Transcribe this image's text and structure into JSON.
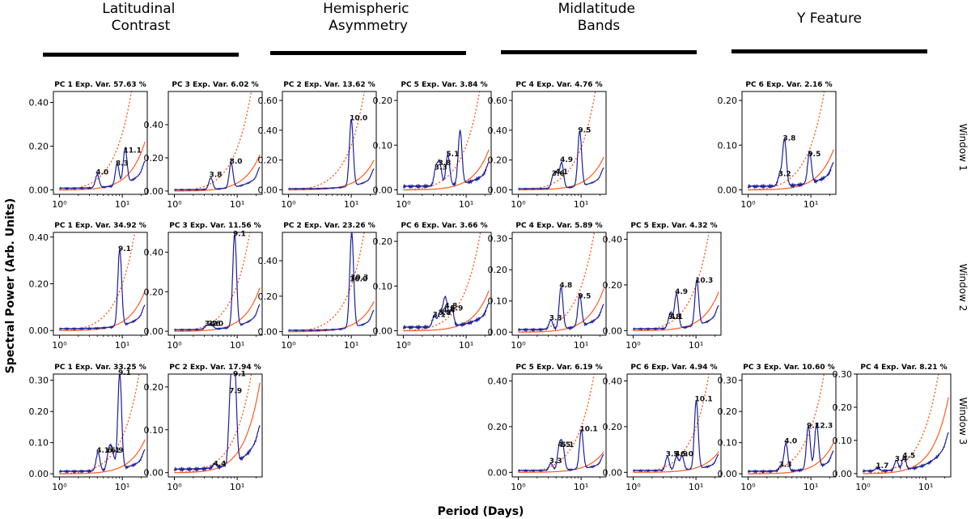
{
  "figure": {
    "ylabel": "Spectral Power (Arb. Units)",
    "xlabel": "Period (Days)",
    "columns": [
      "Latitudinal Contrast",
      "Hemispheric Asymmetry",
      "Midlatitude Bands",
      "Y Feature"
    ],
    "rows": [
      "Window 1",
      "Window 2",
      "Window 3"
    ]
  },
  "chart_data": [
    {
      "type": "line",
      "row": 0,
      "col": 0,
      "title": "PC 1 Exp. Var. 57.63 %",
      "xscale": "log",
      "xlim": [
        0.8,
        25
      ],
      "ylim": [
        -0.02,
        0.45
      ],
      "yticks": [
        0.0,
        0.2,
        0.4
      ],
      "ytick_labels": [
        "0.00",
        "0.20",
        "0.40"
      ],
      "xtick_labels": [
        "10⁰",
        "10¹"
      ],
      "peaks": [
        {
          "x": 4.0,
          "y": 0.06,
          "label": "4.0"
        },
        {
          "x": 8.3,
          "y": 0.1,
          "label": "8.3"
        },
        {
          "x": 11.1,
          "y": 0.16,
          "label": "11.1"
        }
      ],
      "red_slope": 0.22,
      "dot_slope": 0.55
    },
    {
      "type": "line",
      "row": 0,
      "col": 1,
      "title": "PC 3 Exp. Var. 6.02 %",
      "xscale": "log",
      "xlim": [
        0.8,
        25
      ],
      "ylim": [
        -0.02,
        0.6
      ],
      "yticks": [
        0.0,
        0.2,
        0.4
      ],
      "ytick_labels": [
        "0.00",
        "0.20",
        "0.40"
      ],
      "xtick_labels": [
        "10⁰",
        "10¹"
      ],
      "peaks": [
        {
          "x": 3.8,
          "y": 0.07,
          "label": "3.8"
        },
        {
          "x": 8.0,
          "y": 0.15,
          "label": "8.0"
        }
      ],
      "red_slope": 0.22,
      "dot_slope": 0.55
    },
    {
      "type": "line",
      "row": 0,
      "col": 2,
      "title": "PC 2 Exp. Var. 13.62 %",
      "xscale": "log",
      "xlim": [
        0.8,
        25
      ],
      "ylim": [
        -0.03,
        0.66
      ],
      "yticks": [
        0.0,
        0.2,
        0.4,
        0.6
      ],
      "ytick_labels": [
        "0.00",
        "0.20",
        "0.40",
        "0.60"
      ],
      "xtick_labels": [
        "10⁰",
        "10¹"
      ],
      "peaks": [
        {
          "x": 10.0,
          "y": 0.45,
          "label": "10.0"
        }
      ],
      "red_slope": 0.2,
      "dot_slope": 0.64
    },
    {
      "type": "line",
      "row": 0,
      "col": 3,
      "title": "PC 5 Exp. Var. 3.84 %",
      "xscale": "log",
      "xlim": [
        0.8,
        25
      ],
      "ylim": [
        -0.01,
        0.22
      ],
      "yticks": [
        0.0,
        0.1,
        0.2
      ],
      "ytick_labels": [
        "0.00",
        "0.10",
        "0.20"
      ],
      "xtick_labels": [
        "10⁰",
        "10¹"
      ],
      "peaks": [
        {
          "x": 3.3,
          "y": 0.04,
          "label": "3.3"
        },
        {
          "x": 3.8,
          "y": 0.05,
          "label": "3.8"
        },
        {
          "x": 5.1,
          "y": 0.07,
          "label": "5.1"
        },
        {
          "x": 8.0,
          "y": 0.12,
          "label": ""
        }
      ],
      "red_slope": 0.09,
      "dot_slope": 0.21
    },
    {
      "type": "line",
      "row": 0,
      "col": 4,
      "title": "PC 4 Exp. Var. 4.76 %",
      "xscale": "log",
      "xlim": [
        0.8,
        25
      ],
      "ylim": [
        -0.03,
        0.66
      ],
      "yticks": [
        0.0,
        0.2,
        0.4,
        0.6
      ],
      "ytick_labels": [
        "0.00",
        "0.20",
        "0.40",
        "0.60"
      ],
      "xtick_labels": [
        "10⁰",
        "10¹"
      ],
      "peaks": [
        {
          "x": 3.6,
          "y": 0.08,
          "label": "3.6"
        },
        {
          "x": 4.1,
          "y": 0.09,
          "label": "4.1"
        },
        {
          "x": 4.9,
          "y": 0.17,
          "label": "4.9"
        },
        {
          "x": 9.5,
          "y": 0.37,
          "label": "9.5"
        }
      ],
      "red_slope": 0.22,
      "dot_slope": 0.6
    },
    {
      "type": "line",
      "row": 0,
      "col": 6,
      "title": "PC 6 Exp. Var. 2.16 %",
      "xscale": "log",
      "xlim": [
        0.8,
        25
      ],
      "ylim": [
        -0.01,
        0.22
      ],
      "yticks": [
        0.0,
        0.1,
        0.2
      ],
      "ytick_labels": [
        "0.00",
        "0.10",
        "0.20"
      ],
      "xtick_labels": [
        "10⁰",
        "10¹"
      ],
      "peaks": [
        {
          "x": 3.2,
          "y": 0.025,
          "label": "3.2"
        },
        {
          "x": 3.8,
          "y": 0.105,
          "label": "3.8"
        },
        {
          "x": 9.5,
          "y": 0.07,
          "label": "9.5"
        }
      ],
      "red_slope": 0.09,
      "dot_slope": 0.21
    },
    {
      "type": "line",
      "row": 1,
      "col": 0,
      "title": "PC 1 Exp. Var. 34.92 %",
      "xscale": "log",
      "xlim": [
        0.8,
        25
      ],
      "ylim": [
        -0.02,
        0.42
      ],
      "yticks": [
        0.0,
        0.2,
        0.4
      ],
      "ytick_labels": [
        "0.00",
        "0.20",
        "0.40"
      ],
      "xtick_labels": [
        "10⁰",
        "10¹"
      ],
      "peaks": [
        {
          "x": 9.1,
          "y": 0.33,
          "label": "9.1"
        }
      ],
      "red_slope": 0.17,
      "dot_slope": 0.42
    },
    {
      "type": "line",
      "row": 1,
      "col": 1,
      "title": "PC 3 Exp. Var. 11.56 %",
      "xscale": "log",
      "xlim": [
        0.8,
        25
      ],
      "ylim": [
        -0.02,
        0.5
      ],
      "yticks": [
        0.0,
        0.2,
        0.4
      ],
      "ytick_labels": [
        "0.00",
        "0.20",
        "0.40"
      ],
      "xtick_labels": [
        "10⁰",
        "10¹"
      ],
      "peaks": [
        {
          "x": 3.2,
          "y": 0.015,
          "label": "3.2"
        },
        {
          "x": 3.6,
          "y": 0.015,
          "label": "3.6"
        },
        {
          "x": 4.0,
          "y": 0.015,
          "label": "4.0"
        },
        {
          "x": 9.1,
          "y": 0.47,
          "label": "9.1"
        }
      ],
      "red_slope": 0.22,
      "dot_slope": 0.5
    },
    {
      "type": "line",
      "row": 1,
      "col": 2,
      "title": "PC 2 Exp. Var. 23.26 %",
      "xscale": "log",
      "xlim": [
        0.8,
        25
      ],
      "ylim": [
        -0.02,
        0.56
      ],
      "yticks": [
        0.0,
        0.2,
        0.4
      ],
      "ytick_labels": [
        "0.00",
        "0.20",
        "0.40"
      ],
      "xtick_labels": [
        "10⁰",
        "10¹"
      ],
      "peaks": [
        {
          "x": 10.0,
          "y": 0.27,
          "label": "10.0"
        },
        {
          "x": 10.3,
          "y": 0.28,
          "label": "10.3"
        }
      ],
      "red_slope": 0.17,
      "dot_slope": 0.55
    },
    {
      "type": "line",
      "row": 1,
      "col": 3,
      "title": "PC 6 Exp. Var. 3.66 %",
      "xscale": "log",
      "xlim": [
        0.8,
        25
      ],
      "ylim": [
        -0.01,
        0.22
      ],
      "yticks": [
        0.0,
        0.1,
        0.2
      ],
      "ytick_labels": [
        "0.00",
        "0.10",
        "0.20"
      ],
      "xtick_labels": [
        "10⁰",
        "10¹"
      ],
      "peaks": [
        {
          "x": 3.1,
          "y": 0.025,
          "label": "3.1"
        },
        {
          "x": 3.8,
          "y": 0.03,
          "label": "3.8"
        },
        {
          "x": 4.4,
          "y": 0.035,
          "label": "4.4"
        },
        {
          "x": 4.8,
          "y": 0.045,
          "label": "4.8"
        },
        {
          "x": 5.9,
          "y": 0.04,
          "label": "5.9"
        }
      ],
      "red_slope": 0.09,
      "dot_slope": 0.2
    },
    {
      "type": "line",
      "row": 1,
      "col": 4,
      "title": "PC 4 Exp. Var. 5.89 %",
      "xscale": "log",
      "xlim": [
        0.8,
        25
      ],
      "ylim": [
        -0.01,
        0.32
      ],
      "yticks": [
        0.0,
        0.1,
        0.2,
        0.3
      ],
      "ytick_labels": [
        "0.00",
        "0.10",
        "0.20",
        "0.30"
      ],
      "xtick_labels": [
        "10⁰",
        "10¹"
      ],
      "peaks": [
        {
          "x": 3.3,
          "y": 0.03,
          "label": "3.3"
        },
        {
          "x": 4.8,
          "y": 0.135,
          "label": "4.8"
        },
        {
          "x": 9.5,
          "y": 0.1,
          "label": "9.5"
        }
      ],
      "red_slope": 0.14,
      "dot_slope": 0.31
    },
    {
      "type": "line",
      "row": 1,
      "col": 5,
      "title": "PC 5 Exp. Var. 4.32 %",
      "xscale": "log",
      "xlim": [
        0.8,
        25
      ],
      "ylim": [
        -0.02,
        0.43
      ],
      "yticks": [
        0.0,
        0.2,
        0.4
      ],
      "ytick_labels": [
        "0.00",
        "0.20",
        "0.40"
      ],
      "xtick_labels": [
        "10⁰",
        "10¹"
      ],
      "peaks": [
        {
          "x": 3.8,
          "y": 0.04,
          "label": "3.8"
        },
        {
          "x": 4.1,
          "y": 0.04,
          "label": "4.1"
        },
        {
          "x": 4.9,
          "y": 0.15,
          "label": "4.9"
        },
        {
          "x": 10.3,
          "y": 0.2,
          "label": "10.3"
        }
      ],
      "red_slope": 0.17,
      "dot_slope": 0.42
    },
    {
      "type": "line",
      "row": 2,
      "col": 0,
      "title": "PC 1 Exp. Var. 33.25 %",
      "xscale": "log",
      "xlim": [
        0.8,
        25
      ],
      "ylim": [
        -0.01,
        0.32
      ],
      "yticks": [
        0.0,
        0.1,
        0.2,
        0.3
      ],
      "ytick_labels": [
        "0.00",
        "0.10",
        "0.20",
        "0.30"
      ],
      "xtick_labels": [
        "10⁰",
        "10¹"
      ],
      "peaks": [
        {
          "x": 4.1,
          "y": 0.06,
          "label": "4.1"
        },
        {
          "x": 6.1,
          "y": 0.06,
          "label": "6.1"
        },
        {
          "x": 6.9,
          "y": 0.06,
          "label": "6.9"
        },
        {
          "x": 9.1,
          "y": 0.31,
          "label": "9.1"
        }
      ],
      "red_slope": 0.11,
      "dot_slope": 0.25
    },
    {
      "type": "line",
      "row": 2,
      "col": 1,
      "title": "PC 2 Exp. Var. 17.94 %",
      "xscale": "log",
      "xlim": [
        0.8,
        25
      ],
      "ylim": [
        -0.01,
        0.23
      ],
      "yticks": [
        0.0,
        0.1,
        0.2
      ],
      "ytick_labels": [
        "0.00",
        "0.10",
        "0.20"
      ],
      "xtick_labels": [
        "10⁰",
        "10¹"
      ],
      "peaks": [
        {
          "x": 4.4,
          "y": 0.01,
          "label": "4.4"
        },
        {
          "x": 7.9,
          "y": 0.18,
          "label": "7.9"
        },
        {
          "x": 9.1,
          "y": 0.22,
          "label": "9.1"
        }
      ],
      "red_slope": 0.21,
      "dot_slope": 0.21
    },
    {
      "type": "line",
      "row": 2,
      "col": 4,
      "title": "PC 5 Exp. Var. 6.19 %",
      "xscale": "log",
      "xlim": [
        0.8,
        25
      ],
      "ylim": [
        -0.02,
        0.43
      ],
      "yticks": [
        0.0,
        0.2,
        0.4
      ],
      "ytick_labels": [
        "0.00",
        "0.20",
        "0.40"
      ],
      "xtick_labels": [
        "10⁰",
        "10¹"
      ],
      "peaks": [
        {
          "x": 3.3,
          "y": 0.03,
          "label": "3.3"
        },
        {
          "x": 4.5,
          "y": 0.1,
          "label": "4.5"
        },
        {
          "x": 5.1,
          "y": 0.1,
          "label": "5.1"
        },
        {
          "x": 10.1,
          "y": 0.17,
          "label": "10.1"
        }
      ],
      "red_slope": 0.09,
      "dot_slope": 0.42
    },
    {
      "type": "line",
      "row": 2,
      "col": 5,
      "title": "PC 6 Exp. Var. 4.94 %",
      "xscale": "log",
      "xlim": [
        0.8,
        25
      ],
      "ylim": [
        -0.02,
        0.43
      ],
      "yticks": [
        0.0,
        0.2,
        0.4
      ],
      "ytick_labels": [
        "0.00",
        "0.20",
        "0.40"
      ],
      "xtick_labels": [
        "10⁰",
        "10¹"
      ],
      "peaks": [
        {
          "x": 3.5,
          "y": 0.06,
          "label": "3.5"
        },
        {
          "x": 4.9,
          "y": 0.06,
          "label": "4.9"
        },
        {
          "x": 6.0,
          "y": 0.06,
          "label": "6.0"
        },
        {
          "x": 10.1,
          "y": 0.3,
          "label": "10.1"
        }
      ],
      "red_slope": 0.09,
      "dot_slope": 0.42
    },
    {
      "type": "line",
      "row": 2,
      "col": 6,
      "title": "PC 3 Exp. Var. 10.60 %",
      "xscale": "log",
      "xlim": [
        0.8,
        25
      ],
      "ylim": [
        -0.01,
        0.32
      ],
      "yticks": [
        0.0,
        0.1,
        0.2,
        0.3
      ],
      "ytick_labels": [
        "0.00",
        "0.10",
        "0.20",
        "0.30"
      ],
      "xtick_labels": [
        "10⁰",
        "10¹"
      ],
      "peaks": [
        {
          "x": 3.3,
          "y": 0.015,
          "label": "3.3"
        },
        {
          "x": 4.0,
          "y": 0.09,
          "label": "4.0"
        },
        {
          "x": 9.1,
          "y": 0.14,
          "label": "9.1"
        },
        {
          "x": 12.3,
          "y": 0.14,
          "label": "12.3"
        }
      ],
      "red_slope": 0.1,
      "dot_slope": 0.31
    },
    {
      "type": "line",
      "row": 2,
      "col": 7,
      "title": "PC 4 Exp. Var. 8.21 %",
      "xscale": "log",
      "xlim": [
        0.8,
        25
      ],
      "ylim": [
        -0.01,
        0.3
      ],
      "yticks": [
        0.0,
        0.1,
        0.2,
        0.3
      ],
      "ytick_labels": [
        "0.00",
        "0.10",
        "0.20",
        "0.30"
      ],
      "xtick_labels": [
        "10⁰",
        "10¹"
      ],
      "peaks": [
        {
          "x": 1.7,
          "y": 0.01,
          "label": "1.7"
        },
        {
          "x": 3.4,
          "y": 0.03,
          "label": "3.4"
        },
        {
          "x": 4.5,
          "y": 0.04,
          "label": "4.5"
        }
      ],
      "red_slope": 0.23,
      "dot_slope": 0.3
    }
  ]
}
